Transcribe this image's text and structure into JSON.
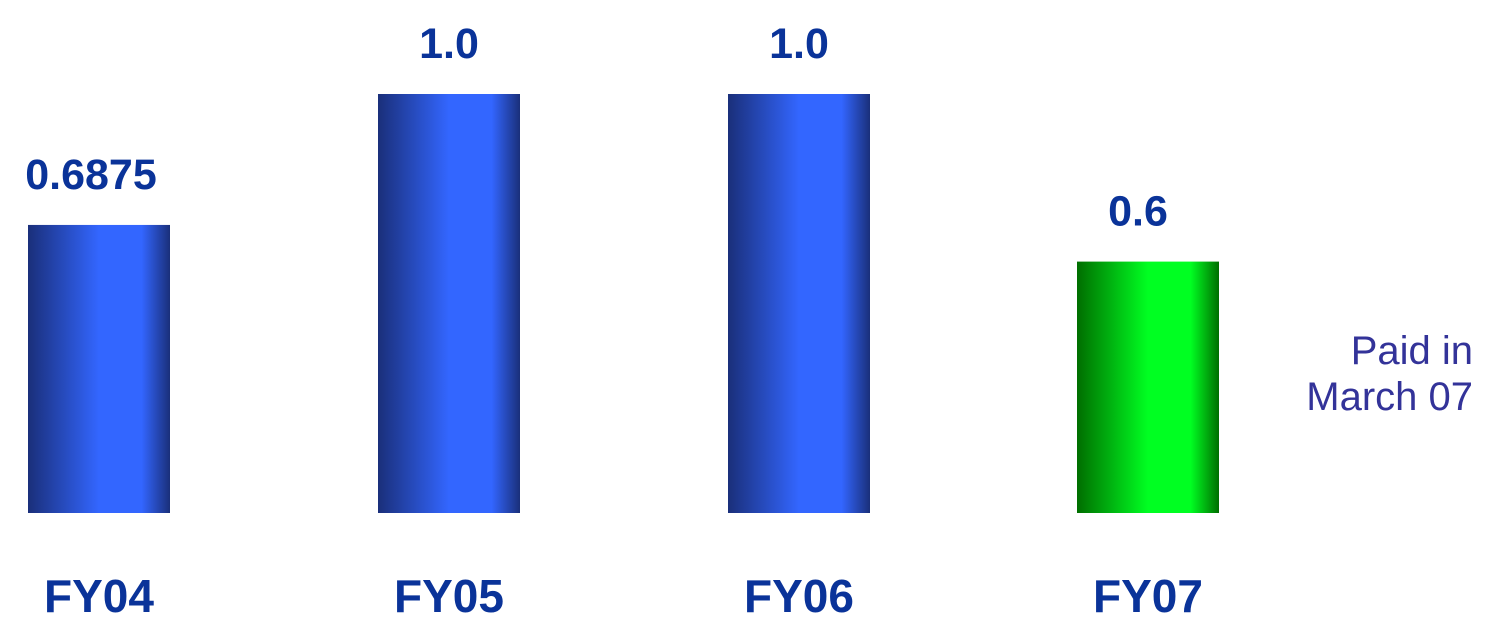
{
  "chart_data": {
    "type": "bar",
    "categories": [
      "FY04",
      "FY05",
      "FY06",
      "FY07"
    ],
    "values": [
      0.6875,
      1.0,
      1.0,
      0.6
    ],
    "value_labels": [
      "0.6875",
      "1.0",
      "1.0",
      "0.6"
    ],
    "title": "",
    "xlabel": "",
    "ylabel": "",
    "ylim": [
      0,
      1.0
    ],
    "grid": false,
    "legend": "none",
    "bar_colors": [
      "blue",
      "blue",
      "blue",
      "green"
    ],
    "colors": {
      "blue_edge": "#1a2f7a",
      "blue_center": "#3366ff",
      "green_edge": "#006e00",
      "green_center": "#00ff22",
      "label": "#0a3399",
      "note": "#333399"
    },
    "annotations": [
      {
        "text_lines": [
          "Paid in",
          "March 07"
        ],
        "category": "FY07",
        "position": "right"
      }
    ]
  }
}
